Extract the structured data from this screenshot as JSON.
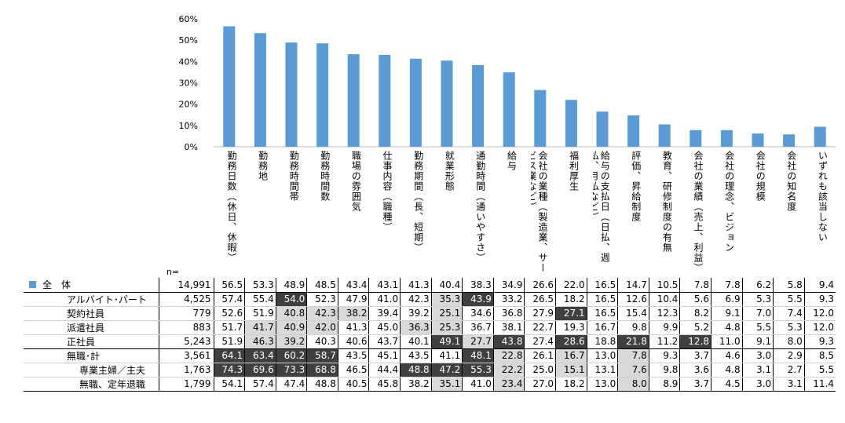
{
  "chart_data": {
    "type": "bar",
    "ylim": [
      0,
      60
    ],
    "yticks": [
      "0%",
      "10%",
      "20%",
      "30%",
      "40%",
      "50%",
      "60%"
    ],
    "categories": [
      "勤務日数（休日、休暇）",
      "勤務地",
      "勤務時間帯",
      "勤務時間数",
      "職場の雰囲気",
      "仕事内容（職種）",
      "勤務期間（長、短期）",
      "就業形態",
      "通勤時間（通いやすさ）",
      "給与",
      "会社の業種（製造業、サービス業など）",
      "福利厚生",
      "給与の支払日（日払、週払、月払など）",
      "評価、昇給制度",
      "教育、研修制度の有無",
      "会社の業績（売上、利益）",
      "会社の理念、ビジョン",
      "会社の規模",
      "会社の知名度",
      "いずれも該当しない"
    ],
    "series": [
      {
        "values": [
          56.5,
          53.3,
          48.9,
          48.5,
          43.4,
          43.1,
          41.3,
          40.4,
          38.3,
          34.9,
          26.6,
          22.0,
          16.5,
          14.7,
          10.5,
          7.8,
          7.8,
          6.2,
          5.8,
          9.4
        ]
      }
    ],
    "bar_color": "#5b9bd5"
  },
  "table": {
    "n_label": "n=",
    "rows": [
      {
        "label": "全　体",
        "n": "14,991",
        "vals": [
          "56.5",
          "53.3",
          "48.9",
          "48.5",
          "43.4",
          "43.1",
          "41.3",
          "40.4",
          "38.3",
          "34.9",
          "26.6",
          "22.0",
          "16.5",
          "14.7",
          "10.5",
          "7.8",
          "7.8",
          "6.2",
          "5.8",
          "9.4"
        ],
        "dark": [],
        "light": []
      },
      {
        "label": "アルバイト･パート",
        "n": "4,525",
        "vals": [
          "57.4",
          "55.4",
          "54.0",
          "52.3",
          "47.9",
          "41.0",
          "42.3",
          "35.3",
          "43.9",
          "33.2",
          "26.5",
          "18.2",
          "16.5",
          "12.6",
          "10.4",
          "5.6",
          "6.9",
          "5.3",
          "5.5",
          "9.3"
        ],
        "dark": [
          2,
          8
        ],
        "light": [
          7
        ]
      },
      {
        "label": "契約社員",
        "n": "779",
        "vals": [
          "52.6",
          "51.9",
          "40.8",
          "42.3",
          "38.2",
          "39.4",
          "39.2",
          "25.1",
          "34.6",
          "36.8",
          "27.9",
          "27.1",
          "16.5",
          "15.4",
          "12.3",
          "8.2",
          "9.1",
          "7.0",
          "7.4",
          "12.0"
        ],
        "dark": [
          11
        ],
        "light": [
          2,
          3,
          4,
          7
        ]
      },
      {
        "label": "派遣社員",
        "n": "883",
        "vals": [
          "51.7",
          "41.7",
          "40.9",
          "42.0",
          "41.3",
          "45.0",
          "36.3",
          "25.3",
          "36.7",
          "38.1",
          "22.7",
          "19.3",
          "16.7",
          "9.8",
          "9.9",
          "5.2",
          "4.8",
          "5.5",
          "5.3",
          "12.0"
        ],
        "dark": [],
        "light": [
          1,
          2,
          3,
          6,
          7
        ]
      },
      {
        "label": "正社員",
        "n": "5,243",
        "vals": [
          "51.9",
          "46.3",
          "39.2",
          "40.3",
          "40.6",
          "43.7",
          "40.1",
          "49.1",
          "27.7",
          "43.8",
          "27.4",
          "28.6",
          "18.8",
          "21.8",
          "11.2",
          "12.8",
          "11.0",
          "9.1",
          "8.0",
          "9.3"
        ],
        "dark": [
          7,
          9,
          11,
          13,
          15
        ],
        "light": [
          1,
          2,
          8
        ]
      },
      {
        "label": "無職･計",
        "n": "3,561",
        "vals": [
          "64.1",
          "63.4",
          "60.2",
          "58.7",
          "43.5",
          "45.1",
          "43.5",
          "41.1",
          "48.1",
          "22.8",
          "26.1",
          "16.7",
          "13.0",
          "7.8",
          "9.3",
          "3.7",
          "4.6",
          "3.0",
          "2.9",
          "8.5"
        ],
        "dark": [
          0,
          1,
          2,
          3,
          8
        ],
        "light": [
          9,
          11,
          13
        ]
      },
      {
        "label": "専業主婦／主夫",
        "n": "1,763",
        "vals": [
          "74.3",
          "69.6",
          "73.3",
          "68.8",
          "46.5",
          "44.4",
          "48.8",
          "47.2",
          "55.3",
          "22.2",
          "25.0",
          "15.1",
          "13.1",
          "7.6",
          "9.8",
          "3.6",
          "4.8",
          "3.1",
          "2.7",
          "5.5"
        ],
        "dark": [
          0,
          1,
          2,
          3,
          6,
          7,
          8
        ],
        "light": [
          9,
          11,
          13
        ]
      },
      {
        "label": "無職、定年退職",
        "n": "1,799",
        "vals": [
          "54.1",
          "57.4",
          "47.4",
          "48.8",
          "40.5",
          "45.8",
          "38.2",
          "35.1",
          "41.0",
          "23.4",
          "27.0",
          "18.2",
          "13.0",
          "8.0",
          "8.9",
          "3.7",
          "4.5",
          "3.0",
          "3.1",
          "11.4"
        ],
        "dark": [],
        "light": [
          7,
          9,
          13
        ]
      }
    ]
  }
}
